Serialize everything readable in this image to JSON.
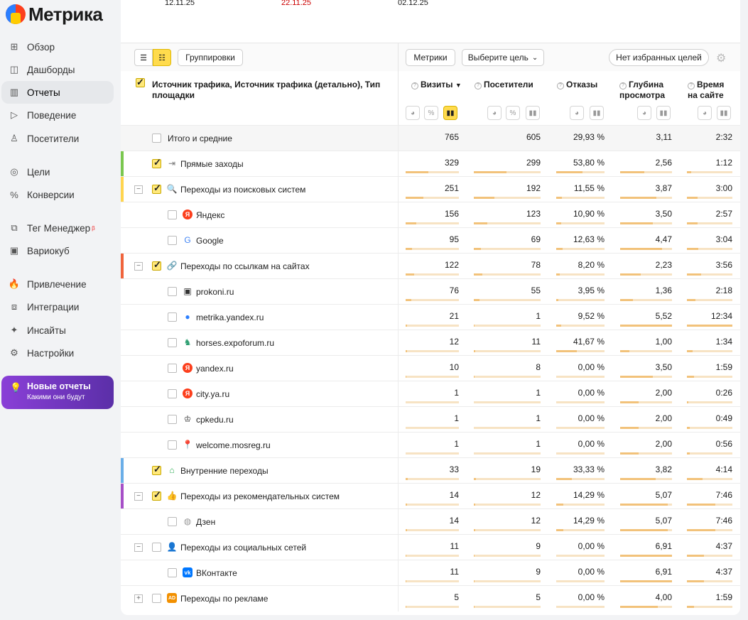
{
  "app": {
    "title": "Метрика"
  },
  "nav": [
    {
      "label": "Обзор",
      "icon": "grid-icon",
      "glyph": "⊞",
      "active": false
    },
    {
      "label": "Дашборды",
      "icon": "dashboard-icon",
      "glyph": "◫",
      "active": false
    },
    {
      "label": "Отчеты",
      "icon": "bar-chart-icon",
      "glyph": "▥",
      "active": true
    },
    {
      "label": "Поведение",
      "icon": "play-icon",
      "glyph": "▷",
      "active": false
    },
    {
      "label": "Посетители",
      "icon": "user-icon",
      "glyph": "♙",
      "active": false
    },
    {
      "label": "Цели",
      "icon": "target-icon",
      "glyph": "◎",
      "active": false
    },
    {
      "label": "Конверсии",
      "icon": "percent-icon",
      "glyph": "%",
      "active": false
    },
    {
      "label": "Тег Менеджер",
      "icon": "tag-manager-icon",
      "glyph": "⧉",
      "active": false,
      "badge": "β"
    },
    {
      "label": "Вариокуб",
      "icon": "variocube-icon",
      "glyph": "▣",
      "active": false
    },
    {
      "label": "Привлечение",
      "icon": "fire-icon",
      "glyph": "🔥",
      "active": false
    },
    {
      "label": "Интеграции",
      "icon": "puzzle-icon",
      "glyph": "⧈",
      "active": false
    },
    {
      "label": "Инсайты",
      "icon": "sparkle-icon",
      "glyph": "✦",
      "active": false
    },
    {
      "label": "Настройки",
      "icon": "gear-icon",
      "glyph": "⚙",
      "active": false
    }
  ],
  "promo": {
    "title": "Новые отчеты",
    "subtitle": "Какими они будут",
    "icon": "lightbulb-icon"
  },
  "dates": [
    {
      "label": "12.11.25",
      "color": "#1a1a1a"
    },
    {
      "label": "22.11.25",
      "color": "#cc0000"
    },
    {
      "label": "02.12.25",
      "color": "#1a1a1a"
    }
  ],
  "toolbar": {
    "groupings": "Группировки",
    "metrics": "Метрики",
    "goal_select": "Выберите цель",
    "favorites": "Нет избранных целей"
  },
  "table": {
    "dimension_title": "Источник трафика, Источник трафика (детально), Тип площадки",
    "columns": [
      {
        "label": "Визиты",
        "sorted": "▼"
      },
      {
        "label": "Посетители"
      },
      {
        "label": "Отказы"
      },
      {
        "label": "Глубина просмотра"
      },
      {
        "label": "Время на сайте"
      }
    ],
    "total_label": "Итого и средние",
    "totals": [
      "765",
      "605",
      "29,93 %",
      "3,11",
      "2:32"
    ],
    "rows": [
      {
        "label": "Прямые заходы",
        "level": 0,
        "checked": true,
        "toggle": "",
        "icon": "arrow-in-icon",
        "glyph": "⇥",
        "iconColor": "#777",
        "stripe": "#7ac74f",
        "values": [
          "329",
          "299",
          "53,80 %",
          "2,56",
          "1:12"
        ],
        "bars": [
          0.43,
          0.49,
          0.54,
          0.46,
          0.09
        ]
      },
      {
        "label": "Переходы из поисковых систем",
        "level": 0,
        "checked": true,
        "toggle": "−",
        "icon": "search-icon",
        "glyph": "🔍",
        "iconColor": "#e33",
        "stripe": "#ffd54f",
        "values": [
          "251",
          "192",
          "11,55 %",
          "3,87",
          "3:00"
        ],
        "bars": [
          0.33,
          0.31,
          0.12,
          0.7,
          0.24
        ]
      },
      {
        "label": "Яндекс",
        "level": 1,
        "checked": false,
        "toggle": "",
        "icon": "yandex-icon",
        "glyph": "Я",
        "iconColor": "#fc3f1d",
        "stripe": "",
        "values": [
          "156",
          "123",
          "10,90 %",
          "3,50",
          "2:57"
        ],
        "bars": [
          0.2,
          0.2,
          0.11,
          0.63,
          0.24
        ]
      },
      {
        "label": "Google",
        "level": 1,
        "checked": false,
        "toggle": "",
        "icon": "google-icon",
        "glyph": "G",
        "iconColor": "#4285f4",
        "stripe": "",
        "values": [
          "95",
          "69",
          "12,63 %",
          "4,47",
          "3:04"
        ],
        "bars": [
          0.12,
          0.11,
          0.13,
          0.81,
          0.25
        ]
      },
      {
        "label": "Переходы по ссылкам на сайтах",
        "level": 0,
        "checked": true,
        "toggle": "−",
        "icon": "link-icon",
        "glyph": "🔗",
        "iconColor": "#3a7bd5",
        "stripe": "#f0643c",
        "values": [
          "122",
          "78",
          "8,20 %",
          "2,23",
          "3:56"
        ],
        "bars": [
          0.16,
          0.13,
          0.08,
          0.4,
          0.32
        ]
      },
      {
        "label": "prokoni.ru",
        "level": 1,
        "checked": false,
        "toggle": "",
        "icon": "site-favicon-icon",
        "glyph": "▣",
        "iconColor": "#333",
        "stripe": "",
        "values": [
          "76",
          "55",
          "3,95 %",
          "1,36",
          "2:18"
        ],
        "bars": [
          0.1,
          0.09,
          0.04,
          0.25,
          0.19
        ]
      },
      {
        "label": "metrika.yandex.ru",
        "level": 1,
        "checked": false,
        "toggle": "",
        "icon": "metrika-icon",
        "glyph": "●",
        "iconColor": "#2b7fff",
        "stripe": "",
        "values": [
          "21",
          "1",
          "9,52 %",
          "5,52",
          "12:34"
        ],
        "bars": [
          0.03,
          0.01,
          0.1,
          1.0,
          1.0
        ]
      },
      {
        "label": "horses.expoforum.ru",
        "level": 1,
        "checked": false,
        "toggle": "",
        "icon": "horse-icon",
        "glyph": "♞",
        "iconColor": "#2a9d6f",
        "stripe": "",
        "values": [
          "12",
          "11",
          "41,67 %",
          "1,00",
          "1:34"
        ],
        "bars": [
          0.02,
          0.02,
          0.42,
          0.18,
          0.12
        ]
      },
      {
        "label": "yandex.ru",
        "level": 1,
        "checked": false,
        "toggle": "",
        "icon": "yandex-icon",
        "glyph": "Я",
        "iconColor": "#fc3f1d",
        "stripe": "",
        "values": [
          "10",
          "8",
          "0,00 %",
          "3,50",
          "1:59"
        ],
        "bars": [
          0.01,
          0.01,
          0.0,
          0.63,
          0.16
        ]
      },
      {
        "label": "city.ya.ru",
        "level": 1,
        "checked": false,
        "toggle": "",
        "icon": "yandex-icon",
        "glyph": "Я",
        "iconColor": "#fc3f1d",
        "stripe": "",
        "values": [
          "1",
          "1",
          "0,00 %",
          "2,00",
          "0:26"
        ],
        "bars": [
          0.0,
          0.0,
          0.0,
          0.36,
          0.03
        ]
      },
      {
        "label": "cpkedu.ru",
        "level": 1,
        "checked": false,
        "toggle": "",
        "icon": "emblem-icon",
        "glyph": "♔",
        "iconColor": "#333",
        "stripe": "",
        "values": [
          "1",
          "1",
          "0,00 %",
          "2,00",
          "0:49"
        ],
        "bars": [
          0.0,
          0.0,
          0.0,
          0.36,
          0.06
        ]
      },
      {
        "label": "welcome.mosreg.ru",
        "level": 1,
        "checked": false,
        "toggle": "",
        "icon": "map-pin-icon",
        "glyph": "📍",
        "iconColor": "#e33",
        "stripe": "",
        "values": [
          "1",
          "1",
          "0,00 %",
          "2,00",
          "0:56"
        ],
        "bars": [
          0.0,
          0.0,
          0.0,
          0.36,
          0.07
        ]
      },
      {
        "label": "Внутренние переходы",
        "level": 0,
        "checked": true,
        "toggle": "",
        "icon": "home-icon",
        "glyph": "⌂",
        "iconColor": "#2fae55",
        "stripe": "#6aaee8",
        "values": [
          "33",
          "19",
          "33,33 %",
          "3,82",
          "4:14"
        ],
        "bars": [
          0.04,
          0.03,
          0.33,
          0.69,
          0.34
        ]
      },
      {
        "label": "Переходы из рекомендательных систем",
        "level": 0,
        "checked": true,
        "toggle": "−",
        "icon": "thumbs-up-icon",
        "glyph": "👍",
        "iconColor": "#d04ecf",
        "stripe": "#a64fc7",
        "values": [
          "14",
          "12",
          "14,29 %",
          "5,07",
          "7:46"
        ],
        "bars": [
          0.02,
          0.02,
          0.14,
          0.92,
          0.62
        ]
      },
      {
        "label": "Дзен",
        "level": 1,
        "checked": false,
        "toggle": "",
        "icon": "globe-icon",
        "glyph": "◍",
        "iconColor": "#999",
        "stripe": "",
        "values": [
          "14",
          "12",
          "14,29 %",
          "5,07",
          "7:46"
        ],
        "bars": [
          0.02,
          0.02,
          0.14,
          0.92,
          0.62
        ]
      },
      {
        "label": "Переходы из социальных сетей",
        "level": 0,
        "checked": false,
        "toggle": "−",
        "icon": "person-icon",
        "glyph": "👤",
        "iconColor": "#9b4fd8",
        "stripe": "",
        "values": [
          "11",
          "9",
          "0,00 %",
          "6,91",
          "4:37"
        ],
        "bars": [
          0.01,
          0.01,
          0.0,
          1.0,
          0.37
        ]
      },
      {
        "label": "ВКонтакте",
        "level": 1,
        "checked": false,
        "toggle": "",
        "icon": "vk-icon",
        "glyph": "vk",
        "iconColor": "#0077ff",
        "stripe": "",
        "values": [
          "11",
          "9",
          "0,00 %",
          "6,91",
          "4:37"
        ],
        "bars": [
          0.01,
          0.01,
          0.0,
          1.0,
          0.37
        ]
      },
      {
        "label": "Переходы по рекламе",
        "level": 0,
        "checked": false,
        "toggle": "+",
        "icon": "ad-icon",
        "glyph": "AD",
        "iconColor": "#f29000",
        "stripe": "",
        "values": [
          "5",
          "5",
          "0,00 %",
          "4,00",
          "1:59"
        ],
        "bars": [
          0.01,
          0.01,
          0.0,
          0.72,
          0.16
        ]
      }
    ]
  }
}
